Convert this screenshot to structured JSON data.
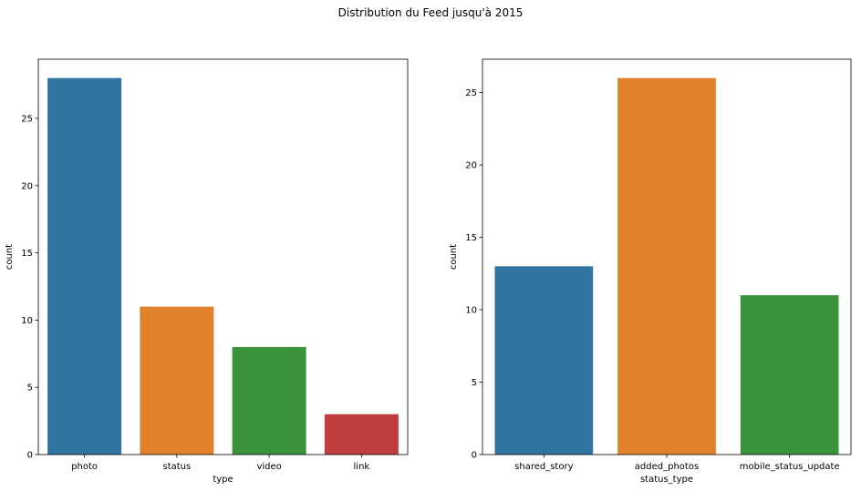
{
  "figure": {
    "title": "Distribution du Feed jusqu'à 2015"
  },
  "chart_data": [
    {
      "type": "bar",
      "categories": [
        "photo",
        "status",
        "video",
        "link"
      ],
      "values": [
        28,
        11,
        8,
        3
      ],
      "colors": [
        "#3274a1",
        "#e1812c",
        "#3a923a",
        "#c03d3e"
      ],
      "xlabel": "type",
      "ylabel": "count",
      "ylim": [
        0,
        29.4
      ],
      "yticks": [
        0,
        5,
        10,
        15,
        20,
        25
      ],
      "grid": false
    },
    {
      "type": "bar",
      "categories": [
        "shared_story",
        "added_photos",
        "mobile_status_update"
      ],
      "values": [
        13,
        26,
        11
      ],
      "colors": [
        "#3274a1",
        "#e1812c",
        "#3a923a"
      ],
      "xlabel": "status_type",
      "ylabel": "count",
      "ylim": [
        0,
        27.3
      ],
      "yticks": [
        0,
        5,
        10,
        15,
        20,
        25
      ],
      "grid": false
    }
  ]
}
